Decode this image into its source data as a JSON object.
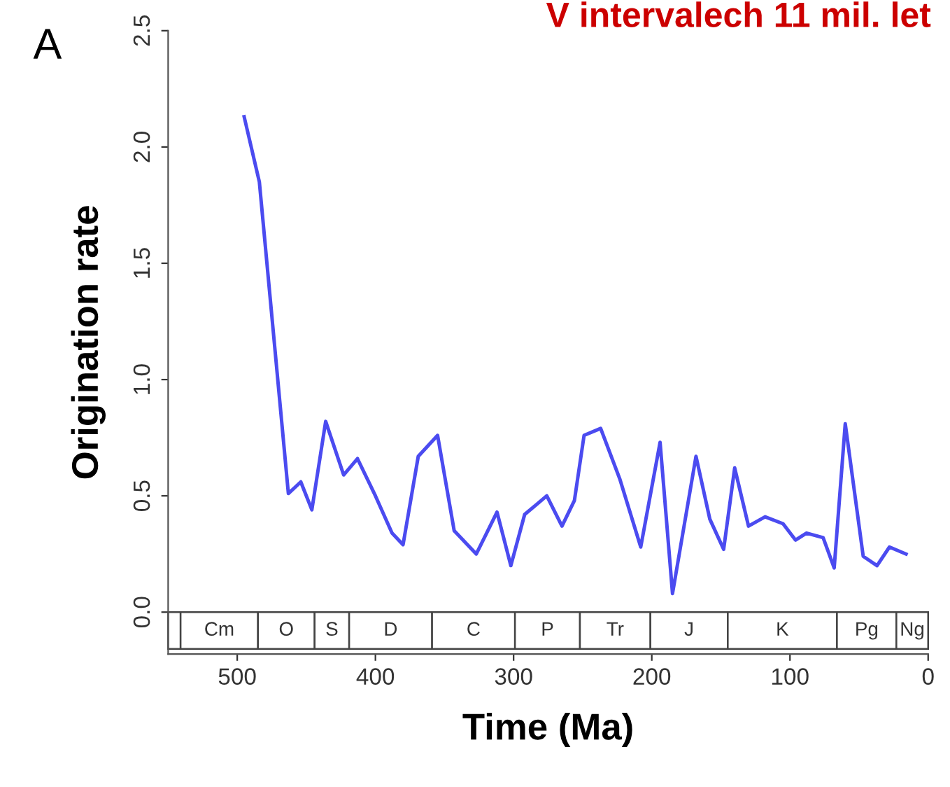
{
  "chart_data": {
    "type": "line",
    "title": "V intervalech 11 mil. let",
    "xlabel": "Time (Ma)",
    "ylabel": "Origination rate",
    "annotations": [
      "A"
    ],
    "x": [
      495,
      484,
      463,
      454,
      446,
      436,
      423,
      413,
      400,
      388,
      380,
      369,
      355,
      343,
      327,
      312,
      302,
      292,
      276,
      265,
      256,
      249,
      237,
      223,
      208,
      194,
      185,
      168,
      158,
      148,
      140,
      130,
      118,
      105,
      96,
      88,
      76,
      68,
      60,
      47,
      37,
      28,
      16
    ],
    "series": [
      {
        "color": "#4b4bf0",
        "values": [
          2.13,
          1.85,
          0.51,
          0.56,
          0.44,
          0.82,
          0.59,
          0.66,
          0.5,
          0.34,
          0.29,
          0.67,
          0.76,
          0.35,
          0.25,
          0.43,
          0.2,
          0.42,
          0.5,
          0.37,
          0.48,
          0.76,
          0.79,
          0.57,
          0.28,
          0.73,
          0.08,
          0.67,
          0.4,
          0.27,
          0.62,
          0.37,
          0.41,
          0.38,
          0.31,
          0.34,
          0.32,
          0.19,
          0.81,
          0.24,
          0.2,
          0.28,
          0.25
        ]
      }
    ],
    "bands": [
      {
        "axis": "x",
        "from": 550,
        "to": 541,
        "label": null
      },
      {
        "axis": "x",
        "from": 541,
        "to": 485,
        "label": "Cm"
      },
      {
        "axis": "x",
        "from": 485,
        "to": 444,
        "label": "O"
      },
      {
        "axis": "x",
        "from": 444,
        "to": 419,
        "label": "S"
      },
      {
        "axis": "x",
        "from": 419,
        "to": 359,
        "label": "D"
      },
      {
        "axis": "x",
        "from": 359,
        "to": 299,
        "label": "C"
      },
      {
        "axis": "x",
        "from": 299,
        "to": 252,
        "label": "P"
      },
      {
        "axis": "x",
        "from": 252,
        "to": 201,
        "label": "Tr"
      },
      {
        "axis": "x",
        "from": 201,
        "to": 145,
        "label": "J"
      },
      {
        "axis": "x",
        "from": 145,
        "to": 66,
        "label": "K"
      },
      {
        "axis": "x",
        "from": 66,
        "to": 23,
        "label": "Pg"
      },
      {
        "axis": "x",
        "from": 23,
        "to": 0,
        "label": "Ng"
      }
    ],
    "xlim": [
      550,
      0
    ],
    "xticks": [
      500,
      400,
      300,
      200,
      100,
      0
    ],
    "ylim": [
      -0.18,
      2.5
    ],
    "yticks": [
      {
        "value": 0,
        "label": "0.0"
      },
      0.5,
      {
        "value": 1,
        "label": "1.0"
      },
      1.5,
      {
        "value": 2,
        "label": "2.0"
      },
      2.5
    ],
    "grid": false,
    "marker": "none",
    "line_style": "solid"
  }
}
